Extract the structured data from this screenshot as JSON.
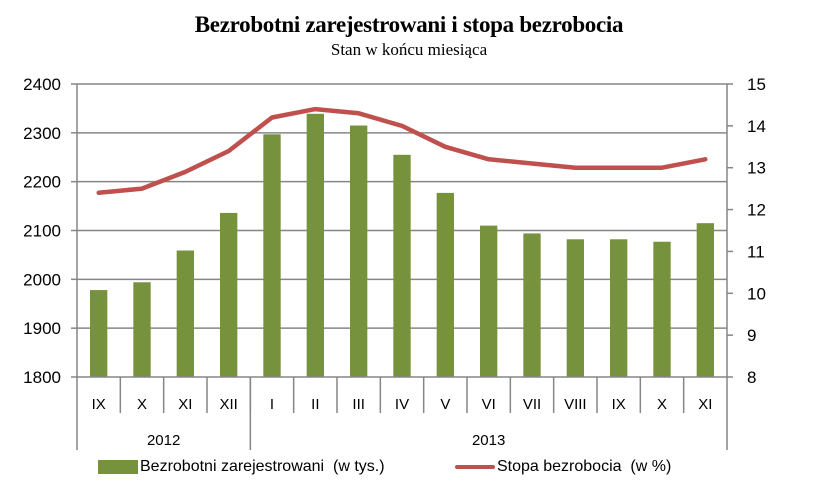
{
  "chart_data": {
    "type": "bar+line",
    "title": "Bezrobotni zarejestrowani i stopa bezrobocia",
    "subtitle": "Stan w końcu miesiąca",
    "categories": [
      "IX",
      "X",
      "XI",
      "XII",
      "I",
      "II",
      "III",
      "IV",
      "V",
      "VI",
      "VII",
      "VIII",
      "IX",
      "X",
      "XI"
    ],
    "year_groups": [
      {
        "label": "2012",
        "span": 4
      },
      {
        "label": "2013",
        "span": 11
      }
    ],
    "series": [
      {
        "name": "Bezrobotni zarejestrowani  (w tys.)",
        "type": "bar",
        "axis": "left",
        "color": "#76923c",
        "values": [
          1978,
          1994,
          2059,
          2136,
          2297,
          2339,
          2315,
          2255,
          2177,
          2110,
          2094,
          2082,
          2082,
          2077,
          2115
        ]
      },
      {
        "name": "Stopa bezrobocia  (w %)",
        "type": "line",
        "axis": "right",
        "color": "#c0504d",
        "values": [
          12.4,
          12.5,
          12.9,
          13.4,
          14.2,
          14.4,
          14.3,
          14.0,
          13.5,
          13.2,
          13.1,
          13.0,
          13.0,
          13.0,
          13.2
        ]
      }
    ],
    "left_axis": {
      "ylim": [
        1800,
        2400
      ],
      "ticks": [
        1800,
        1900,
        2000,
        2100,
        2200,
        2300,
        2400
      ]
    },
    "right_axis": {
      "ylim": [
        8,
        15
      ],
      "ticks": [
        8,
        9,
        10,
        11,
        12,
        13,
        14,
        15
      ]
    },
    "grid": true,
    "legend_position": "bottom"
  },
  "legend": {
    "bars_label": "Bezrobotni zarejestrowani  (w tys.)",
    "line_label": "Stopa bezrobocia  (w %)"
  }
}
